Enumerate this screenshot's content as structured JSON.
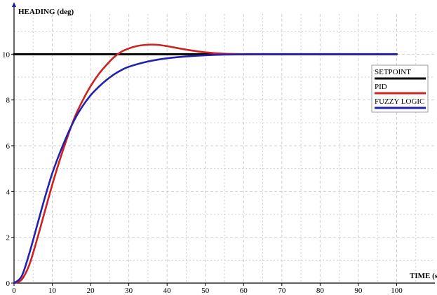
{
  "chart_data": {
    "type": "line",
    "title": "",
    "xlabel": "TIME (s)",
    "ylabel": "HEADING (deg)",
    "xlim": [
      0,
      110
    ],
    "ylim": [
      0,
      12
    ],
    "x_ticks": [
      0,
      10,
      20,
      30,
      40,
      50,
      60,
      70,
      80,
      90,
      100
    ],
    "y_ticks": [
      0,
      2,
      4,
      6,
      8,
      10
    ],
    "grid": true,
    "legend_position": "right",
    "series": [
      {
        "name": "SETPOINT",
        "color": "#000000",
        "x": [
          0,
          100
        ],
        "y": [
          10,
          10
        ]
      },
      {
        "name": "PID",
        "color": "#cc2222",
        "x": [
          0,
          2,
          4,
          6,
          8,
          10,
          12,
          14,
          16,
          18,
          20,
          22,
          24,
          26,
          28,
          30,
          32,
          34,
          36,
          38,
          40,
          45,
          50,
          55,
          60,
          65,
          70,
          80,
          90,
          100
        ],
        "y": [
          0,
          0.15,
          0.8,
          1.9,
          3.1,
          4.3,
          5.4,
          6.4,
          7.3,
          8.0,
          8.6,
          9.1,
          9.5,
          9.85,
          10.1,
          10.25,
          10.35,
          10.4,
          10.42,
          10.4,
          10.35,
          10.2,
          10.08,
          10.02,
          10.0,
          10.0,
          10.0,
          10.0,
          10.0,
          10.0
        ]
      },
      {
        "name": "FUZZY LOGIC",
        "color": "#2222aa",
        "x": [
          0,
          2,
          4,
          6,
          8,
          10,
          12,
          14,
          16,
          18,
          20,
          22,
          24,
          26,
          28,
          30,
          35,
          40,
          45,
          50,
          55,
          60,
          65,
          70,
          80,
          90,
          100
        ],
        "y": [
          0,
          0.3,
          1.3,
          2.5,
          3.7,
          4.8,
          5.7,
          6.5,
          7.2,
          7.75,
          8.2,
          8.55,
          8.85,
          9.1,
          9.3,
          9.45,
          9.68,
          9.82,
          9.9,
          9.95,
          9.98,
          9.99,
          10.0,
          10.0,
          10.0,
          10.0,
          10.0
        ]
      }
    ]
  }
}
